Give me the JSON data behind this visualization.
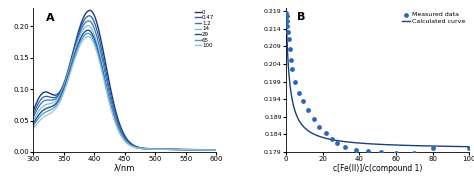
{
  "panel_a": {
    "label": "A",
    "xlim": [
      300,
      600
    ],
    "ylim": [
      0,
      0.23
    ],
    "xlabel": "λ/nm",
    "yticks": [
      0,
      0.05,
      0.1,
      0.15,
      0.2
    ],
    "xticks": [
      300,
      350,
      400,
      450,
      500,
      550,
      600
    ],
    "legend_labels": [
      "0",
      "0.47",
      "1.2",
      "14",
      "29",
      "65",
      "100"
    ],
    "curves": [
      {
        "peak_wl": 393,
        "peak_abs": 0.218,
        "shoulder_abs": 0.072,
        "end_abs": 0.011,
        "color": "#1a3a6e",
        "lw": 1.0
      },
      {
        "peak_wl": 392,
        "peak_abs": 0.21,
        "shoulder_abs": 0.065,
        "end_abs": 0.01,
        "color": "#2860a8",
        "lw": 0.9
      },
      {
        "peak_wl": 391,
        "peak_abs": 0.202,
        "shoulder_abs": 0.058,
        "end_abs": 0.01,
        "color": "#3578c0",
        "lw": 0.9
      },
      {
        "peak_wl": 390,
        "peak_abs": 0.194,
        "shoulder_abs": 0.05,
        "end_abs": 0.01,
        "color": "#88b8d8",
        "lw": 0.9
      },
      {
        "peak_wl": 390,
        "peak_abs": 0.187,
        "shoulder_abs": 0.044,
        "end_abs": 0.01,
        "color": "#1f4f90",
        "lw": 1.0
      },
      {
        "peak_wl": 390,
        "peak_abs": 0.182,
        "shoulder_abs": 0.039,
        "end_abs": 0.01,
        "color": "#4898d0",
        "lw": 0.9
      },
      {
        "peak_wl": 390,
        "peak_abs": 0.177,
        "shoulder_abs": 0.033,
        "end_abs": 0.01,
        "color": "#98c4e0",
        "lw": 0.9
      }
    ]
  },
  "panel_b": {
    "label": "B",
    "xlim": [
      0,
      100
    ],
    "ylim": [
      0.179,
      0.22
    ],
    "xlabel": "c[Fe(II)]/c(compound 1)",
    "yticks": [
      0.179,
      0.184,
      0.189,
      0.194,
      0.199,
      0.204,
      0.209,
      0.214,
      0.219
    ],
    "xticks": [
      0,
      20,
      40,
      60,
      80,
      100
    ],
    "dot_color": "#2868b8",
    "curve_color": "#1a4080",
    "measured_x": [
      0.0,
      0.3,
      0.5,
      0.7,
      1.0,
      1.4,
      2.0,
      2.8,
      3.5,
      5.0,
      7.0,
      9.0,
      12.0,
      15.0,
      18.0,
      22.0,
      25.0,
      28.0,
      32.0,
      38.0,
      45.0,
      52.0,
      60.0,
      70.0,
      80.0,
      100.0
    ],
    "measured_y": [
      0.2185,
      0.2175,
      0.2162,
      0.2148,
      0.213,
      0.211,
      0.2082,
      0.205,
      0.2025,
      0.199,
      0.1958,
      0.1935,
      0.1908,
      0.1885,
      0.1862,
      0.1843,
      0.1828,
      0.1815,
      0.1805,
      0.1797,
      0.1792,
      0.179,
      0.1788,
      0.1786,
      0.18,
      0.18
    ],
    "fit_A": 0.1798,
    "fit_B": 0.04,
    "fit_K": 0.55,
    "legend_dot_label": "Measured data",
    "legend_line_label": "Calculated curve"
  },
  "bg_color": "#ffffff"
}
